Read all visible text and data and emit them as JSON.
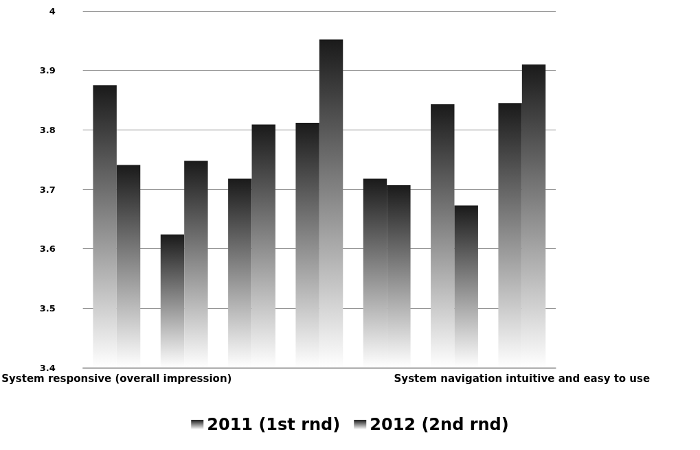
{
  "chart_data": {
    "type": "bar",
    "categories": [
      "System responsive (overall impression)",
      null,
      null,
      null,
      null,
      null,
      "System navigation intuitive and easy to use"
    ],
    "series": [
      {
        "name": "2011 (1st rnd)",
        "color": "#1a1a1a",
        "values": [
          3.875,
          3.624,
          3.718,
          3.812,
          3.718,
          3.843,
          3.845
        ]
      },
      {
        "name": "2012 (2nd rnd)",
        "color": "#1a1a1a",
        "values": [
          3.741,
          3.748,
          3.809,
          3.952,
          3.707,
          3.673,
          3.91
        ]
      }
    ],
    "ylim": [
      3.4,
      4
    ],
    "yticks": [
      3.4,
      3.5,
      3.6,
      3.7,
      3.8,
      3.9,
      4
    ],
    "grid": "y",
    "legend": "bottom"
  }
}
